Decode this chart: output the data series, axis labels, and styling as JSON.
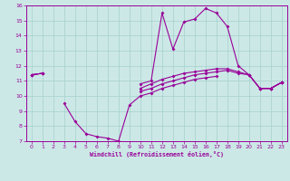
{
  "xlabel": "Windchill (Refroidissement éolien,°C)",
  "xlim": [
    -0.5,
    23.5
  ],
  "ylim": [
    7,
    16
  ],
  "xticks": [
    0,
    1,
    2,
    3,
    4,
    5,
    6,
    7,
    8,
    9,
    10,
    11,
    12,
    13,
    14,
    15,
    16,
    17,
    18,
    19,
    20,
    21,
    22,
    23
  ],
  "yticks": [
    7,
    8,
    9,
    10,
    11,
    12,
    13,
    14,
    15,
    16
  ],
  "bg_color": "#cce8e6",
  "line_color": "#990099",
  "grid_color": "#aad4d0",
  "curve1": {
    "x": [
      0,
      1,
      2,
      3,
      4,
      5,
      6,
      7,
      8,
      9,
      10,
      11,
      12,
      13,
      14,
      15,
      16,
      17,
      18,
      19,
      20,
      21,
      22,
      23
    ],
    "y": [
      11.4,
      11.5,
      null,
      null,
      null,
      null,
      null,
      null,
      null,
      null,
      10.8,
      11.0,
      15.5,
      13.1,
      14.9,
      15.1,
      15.8,
      15.5,
      14.6,
      12.0,
      11.4,
      10.5,
      10.5,
      10.9
    ]
  },
  "curve2": {
    "x": [
      0,
      1,
      2,
      3,
      4,
      5,
      6,
      7,
      8,
      9,
      10,
      11,
      12,
      13,
      14,
      15,
      16,
      17,
      18,
      19,
      20,
      21,
      22,
      23
    ],
    "y": [
      11.4,
      11.5,
      null,
      null,
      null,
      null,
      null,
      null,
      null,
      null,
      10.5,
      10.8,
      11.1,
      11.3,
      11.5,
      11.6,
      11.7,
      11.8,
      11.8,
      11.6,
      11.4,
      10.5,
      10.5,
      10.9
    ]
  },
  "curve3": {
    "x": [
      0,
      1,
      2,
      3,
      4,
      5,
      6,
      7,
      8,
      9,
      10,
      11,
      12,
      13,
      14,
      15,
      16,
      17,
      18,
      19,
      20,
      21,
      22,
      23
    ],
    "y": [
      11.4,
      11.5,
      null,
      null,
      null,
      null,
      null,
      null,
      null,
      null,
      10.3,
      10.5,
      10.8,
      11.0,
      11.2,
      11.4,
      11.5,
      11.6,
      11.7,
      11.5,
      11.4,
      10.5,
      10.5,
      10.9
    ]
  },
  "curve4": {
    "x": [
      0,
      1,
      2,
      3,
      4,
      5,
      6,
      7,
      8,
      9,
      10,
      11,
      12,
      13,
      14,
      15,
      16,
      17,
      18,
      19,
      20,
      21,
      22,
      23
    ],
    "y": [
      null,
      null,
      null,
      9.5,
      8.3,
      7.5,
      7.3,
      7.2,
      7.0,
      9.4,
      10.0,
      10.2,
      10.5,
      10.7,
      10.9,
      11.1,
      11.2,
      11.3,
      null,
      null,
      null,
      10.5,
      10.5,
      10.9
    ]
  }
}
